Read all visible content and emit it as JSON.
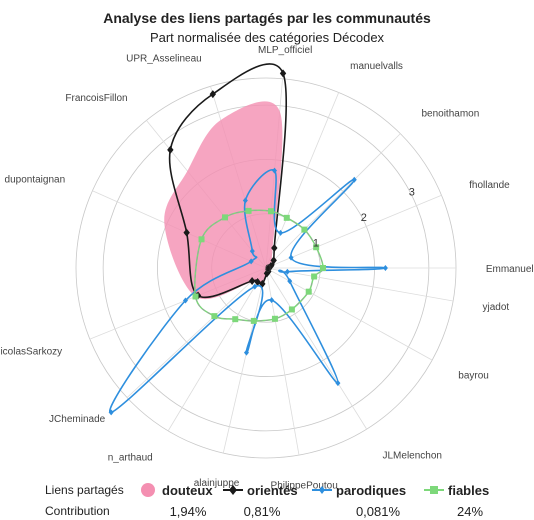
{
  "chart_data": {
    "type": "radar",
    "title": "Analyse des liens partagés par les communautés",
    "subtitle": "Part normalisée des catégories Décodex",
    "rlim": [
      0,
      3.5
    ],
    "r_ticks": [
      "0",
      "1",
      "2",
      "3"
    ],
    "r_tick_values": [
      0,
      1,
      2,
      3
    ],
    "grid": true,
    "categories": [
      "EmmanuelMacron",
      "fhollande",
      "benoithamon",
      "manuelvalls",
      "MLP_officiel",
      "UPR_Asselineau",
      "FrancoisFillon",
      "dupontaignan",
      "NicolasSarkozy",
      "JCheminade",
      "n_arthaud",
      "alainjuppe",
      "PhilippePoutou",
      "JLMelenchon",
      "bayrou",
      "yjadot"
    ],
    "angles_deg": [
      0,
      22.5,
      45,
      67.5,
      85,
      107,
      129,
      156,
      202,
      223,
      239,
      257,
      280,
      302,
      331,
      350
    ],
    "series": [
      {
        "name": "douteux",
        "color": "#f48fb1",
        "values": [
          0.05,
          0.05,
          0.1,
          0.3,
          2.9,
          2.85,
          2.3,
          2.05,
          1.4,
          0.4,
          0.3,
          0.3,
          0.1,
          0.05,
          0.05,
          0.05
        ]
      },
      {
        "name": "orientés",
        "color": "#1a1a1a",
        "values": [
          0.05,
          0.1,
          0.2,
          0.4,
          3.6,
          3.35,
          2.8,
          1.6,
          1.35,
          0.35,
          0.3,
          0.3,
          0.1,
          0.08,
          0.05,
          0.05
        ]
      },
      {
        "name": "parodiques",
        "color": "#2e8fde",
        "values": [
          2.2,
          0.5,
          2.3,
          0.7,
          1.8,
          1.3,
          0.4,
          0.3,
          1.6,
          3.9,
          0.4,
          1.6,
          0.6,
          2.5,
          0.5,
          0.4
        ]
      },
      {
        "name": "fiables",
        "color": "#7dd87a",
        "values": [
          1.05,
          1.0,
          1.0,
          1.0,
          1.05,
          1.1,
          1.2,
          1.3,
          1.4,
          1.3,
          1.1,
          1.0,
          0.95,
          0.9,
          0.9,
          0.9
        ]
      }
    ],
    "legend": {
      "placement": "bottom",
      "title": "Liens partagés",
      "contribution_label": "Contribution",
      "entries": [
        {
          "label": "douteux",
          "contribution": "1,94%"
        },
        {
          "label": "orientés",
          "contribution": "0,81%"
        },
        {
          "label": "parodiques",
          "contribution": "0,081%"
        },
        {
          "label": "fiables",
          "contribution": "24%"
        }
      ]
    }
  }
}
